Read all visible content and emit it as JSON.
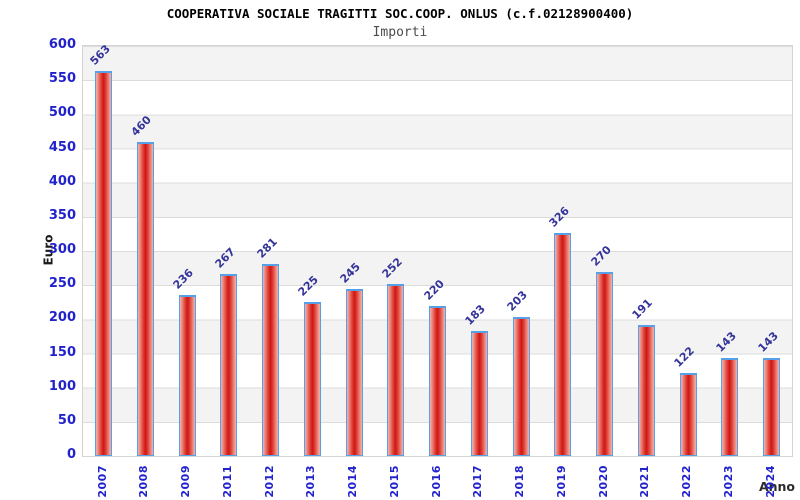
{
  "header": {
    "title": "COOPERATIVA SOCIALE TRAGITTI SOC.COOP. ONLUS (c.f.02128900400)",
    "subtitle": "Importi"
  },
  "chart_data": {
    "type": "bar",
    "title": "COOPERATIVA SOCIALE TRAGITTI SOC.COOP. ONLUS (c.f.02128900400)",
    "subtitle": "Importi",
    "categories": [
      "2007",
      "2008",
      "2009",
      "2011",
      "2012",
      "2013",
      "2014",
      "2015",
      "2016",
      "2017",
      "2018",
      "2019",
      "2020",
      "2021",
      "2022",
      "2023",
      "2024"
    ],
    "values": [
      563,
      460,
      236,
      267,
      281,
      225,
      245,
      252,
      220,
      183,
      203,
      326,
      270,
      191,
      122,
      143,
      143
    ],
    "xlabel": "Anno",
    "ylabel": "Euro",
    "ylim": [
      0,
      600
    ],
    "ytick_step": 50,
    "grid": true,
    "legend": "none",
    "colors": {
      "bar_fill_center": "#ce1612",
      "bar_fill_edge": "#f4b3ad",
      "bar_border": "#55a0e6",
      "tick_label": "#2222cc",
      "value_label": "#333399",
      "band_gray": "#f3f3f3",
      "gridline": "#dcdcdc",
      "title": "#000000",
      "subtitle": "#4d4d4d"
    }
  }
}
